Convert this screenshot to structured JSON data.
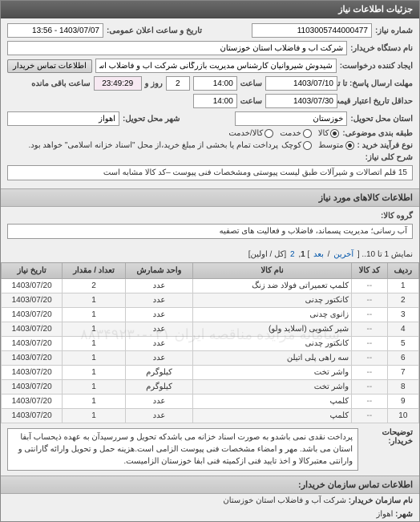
{
  "panel": {
    "title": "جزئیات اطلاعات نیاز"
  },
  "header": {
    "req_no_label": "شماره نیاز:",
    "req_no": "1103005744000477",
    "announce_label": "تاریخ و ساعت اعلان عمومی:",
    "announce_value": "1403/07/07 - 13:56",
    "buyer_label": "نام دستگاه خریدار:",
    "buyer": "شرکت آب و فاضلاب استان خوزستان",
    "requester_label": "ایجاد کننده درخواست:",
    "requester": "شیدوش شیروانیان کارشناس مدیریت بازرگانی شرکت آب و فاضلاب استان خوز",
    "contact_btn": "اطلاعات تماس خریدار"
  },
  "deadlines": {
    "reply_until_label": "مهلت ارسال پاسخ: تا تاریخ:",
    "reply_date": "1403/07/10",
    "time_label": "ساعت",
    "reply_time": "14:00",
    "remain_days": "2",
    "remain_days_label": "روز و",
    "remain_time": "23:49:29",
    "remain_suffix": "ساعت باقی مانده",
    "validity_label": "حداقل تاریخ اعتبار قیمت: تا تاریخ:",
    "validity_date": "1403/07/30",
    "validity_time": "14:00"
  },
  "delivery": {
    "province_label": "استان محل تحویل:",
    "province": "خوزستان",
    "city_label": "شهر محل تحویل:",
    "city": "اهواز"
  },
  "packaging": {
    "label": "طبقه بندی موضوعی:",
    "options": [
      "کالا",
      "خدمت",
      "کالا/خدمت"
    ],
    "selected": 0
  },
  "process": {
    "label": "نوع فرآیند خرید :",
    "options": [
      "متوسط",
      "کوچک"
    ],
    "selected": 0,
    "note": "پرداخت تمام یا بخشی از مبلغ خرید،از محل \"اسناد خزانه اسلامی\" خواهد بود."
  },
  "need": {
    "label": "شرح کلی نیاز:",
    "text": "15 قلم اتصالات و شیرآلات طبق لیست پیوستی ومشخصات فنی پیوست –کد کالا مشابه است"
  },
  "goods": {
    "section_title": "اطلاعات کالاهای مورد نیاز",
    "group_label": "گروه کالا:",
    "group": "آب رسانی؛ مدیریت پسماند، فاضلاب و فعالیت های تصفیه"
  },
  "pager": {
    "prefix": "نمایش 1 تا 10.. [",
    "last": "آخرین",
    "sep": " / ",
    "next": "بعد",
    "close_br": "] ",
    "p1": "1",
    "p2": "2",
    "suffix": " [کل / اولین]",
    "row_label": "ردیف"
  },
  "table": {
    "columns": [
      "ردیف",
      "کد کالا",
      "نام کالا",
      "واحد شمارش",
      "تعداد / مقدار",
      "تاریخ نیاز"
    ],
    "rows": [
      [
        "1",
        "--",
        "کلمپ تعمیراتی فولاد ضد زنگ",
        "عدد",
        "2",
        "1403/07/20"
      ],
      [
        "2",
        "--",
        "کانکتور چدنی",
        "عدد",
        "1",
        "1403/07/20"
      ],
      [
        "3",
        "--",
        "زانوی چدنی",
        "عدد",
        "1",
        "1403/07/20"
      ],
      [
        "4",
        "--",
        "شیر کشویی (اسلاید ولو)",
        "عدد",
        "1",
        "1403/07/20"
      ],
      [
        "5",
        "--",
        "کانکتور چدنی",
        "عدد",
        "1",
        "1403/07/20"
      ],
      [
        "6",
        "--",
        "سه راهی پلی اتیلن",
        "عدد",
        "1",
        "1403/07/20"
      ],
      [
        "7",
        "--",
        "واشر تخت",
        "کیلوگرم",
        "1",
        "1403/07/20"
      ],
      [
        "8",
        "--",
        "واشر تخت",
        "کیلوگرم",
        "1",
        "1403/07/20"
      ],
      [
        "9",
        "--",
        "کلمپ",
        "عدد",
        "1",
        "1403/07/20"
      ],
      [
        "10",
        "--",
        "کلمپ",
        "عدد",
        "1",
        "1403/07/20"
      ]
    ],
    "watermark": "سامانه مزایده مناقصه ایران   ۰۲۱-۸۸۳۴۹۲۳۰"
  },
  "remarks": {
    "label": "توضیحات خریدار:",
    "text": "پرداخت نقدی نمی باشدو به صورت اسناد خزانه می باشدکه تحویل و سررسیدآن به عهده ذیحساب آبفا استان می باشد. مهر و امضاء مشخصات فنی پیوست الزامی است.هزینه حمل و تحویل وارائه گارانتی و وارانتی معتبرکالا و اخذ تایید فنی ازکمیته فنی ابفا خوزستان الزامیست."
  },
  "footer": {
    "section_title": "اطلاعات تماس سازمان خریدار:",
    "org_label": "نام سازمان خریدار:",
    "org": "شرکت آب و فاضلاب استان خوزستان",
    "city_label": "شهر:",
    "city": "اهواز"
  }
}
